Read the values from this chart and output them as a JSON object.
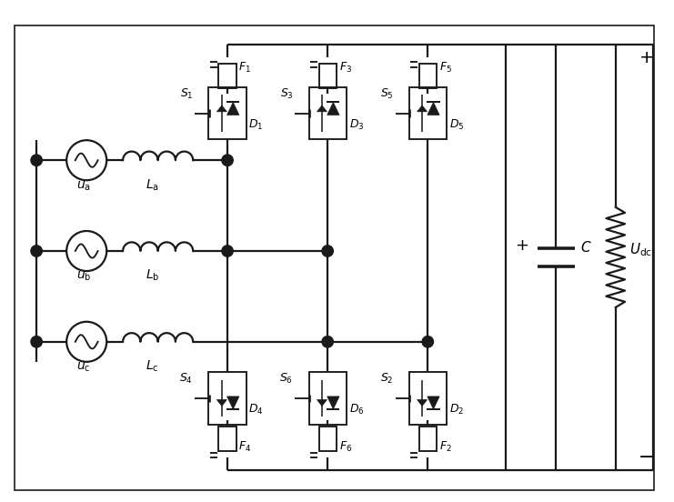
{
  "lc": "#1a1a1a",
  "lw": 1.6,
  "fig_w": 7.41,
  "fig_h": 5.52,
  "x_lim": [
    0,
    10.5
  ],
  "y_lim": [
    0,
    8.0
  ],
  "upper_sw_nums": [
    1,
    3,
    5
  ],
  "lower_sw_nums": [
    4,
    6,
    2
  ],
  "upper_f_nums": [
    1,
    3,
    5
  ],
  "lower_f_nums": [
    4,
    6,
    2
  ],
  "upper_d_nums": [
    1,
    3,
    5
  ],
  "lower_d_nums": [
    4,
    6,
    2
  ],
  "phase_labels": [
    "a",
    "b",
    "c"
  ],
  "ind_labels": [
    "a",
    "b",
    "c"
  ]
}
